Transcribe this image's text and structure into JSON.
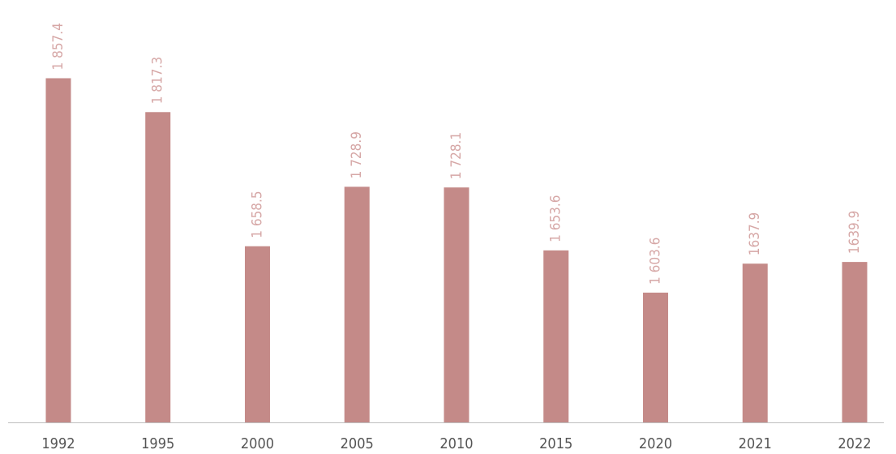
{
  "chart_data": {
    "type": "bar",
    "categories": [
      "1992",
      "1995",
      "2000",
      "2005",
      "2010",
      "2015",
      "2020",
      "2021",
      "2022"
    ],
    "values": [
      1857.4,
      1817.3,
      1658.5,
      1728.9,
      1728.1,
      1653.6,
      1603.6,
      1637.9,
      1639.9
    ],
    "value_labels": [
      "1 857.4",
      "1 817.3",
      "1 658.5",
      "1 728.9",
      "1 728.1",
      "1 653.6",
      "1 603.6",
      "1637.9",
      "1639.9"
    ],
    "color": "#c48a88",
    "ylim": [
      1450,
      1950
    ]
  }
}
